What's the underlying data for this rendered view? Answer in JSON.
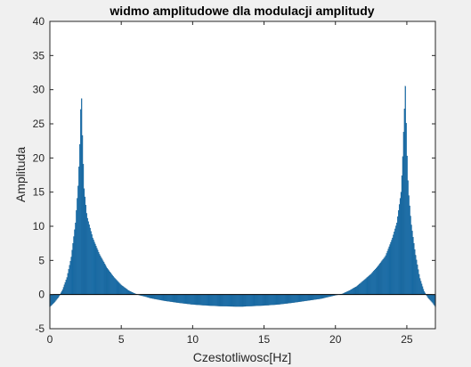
{
  "chart_data": {
    "type": "bar",
    "title": "widmo amplitudowe dla modulacji amplitudy",
    "xlabel": "Czestotliwosc[Hz]",
    "ylabel": "Amplituda",
    "xlim": [
      0,
      27
    ],
    "ylim": [
      -5,
      40
    ],
    "xticks": [
      0,
      5,
      10,
      15,
      20,
      25
    ],
    "yticks": [
      -5,
      0,
      5,
      10,
      15,
      20,
      25,
      30,
      35,
      40
    ],
    "grid": false,
    "bar_color": "#1f77b4",
    "bar_edge_color": "#0b4f80",
    "series": [
      {
        "x": [
          0,
          0.3,
          0.6,
          0.9,
          1.2,
          1.5,
          1.8,
          2.0,
          2.1,
          2.2,
          2.3,
          2.4,
          2.6,
          3.0,
          3.5,
          4.0,
          4.5,
          5.0,
          5.5,
          6.0,
          6.3,
          6.7,
          7.0,
          8.0,
          9.0,
          10.0,
          11.0,
          12.0,
          13.0,
          13.5,
          14.0,
          15.0,
          16.0,
          17.0,
          18.0,
          19.0,
          20.0,
          20.5,
          21.0,
          21.5,
          22.0,
          22.5,
          23.0,
          23.5,
          24.0,
          24.3,
          24.6,
          24.7,
          24.8,
          24.9,
          25.0,
          25.1,
          25.3,
          25.6,
          25.9,
          26.2,
          26.5,
          26.8,
          27.0
        ],
        "values": [
          -1.8,
          -1.2,
          -0.4,
          0.7,
          2.5,
          5.5,
          10.5,
          16.5,
          22.0,
          30.5,
          21.5,
          15.5,
          11.5,
          8.3,
          5.8,
          3.9,
          2.5,
          1.4,
          0.6,
          0.1,
          -0.1,
          -0.3,
          -0.5,
          -0.9,
          -1.2,
          -1.45,
          -1.6,
          -1.7,
          -1.75,
          -1.75,
          -1.7,
          -1.6,
          -1.45,
          -1.2,
          -0.9,
          -0.6,
          -0.1,
          0.1,
          0.6,
          1.2,
          2.1,
          3.0,
          4.2,
          5.6,
          8.3,
          10.5,
          15.0,
          19.0,
          25.0,
          30.5,
          21.5,
          15.5,
          10.5,
          6.0,
          2.5,
          0.5,
          -0.5,
          -1.2,
          -1.8
        ]
      }
    ]
  }
}
